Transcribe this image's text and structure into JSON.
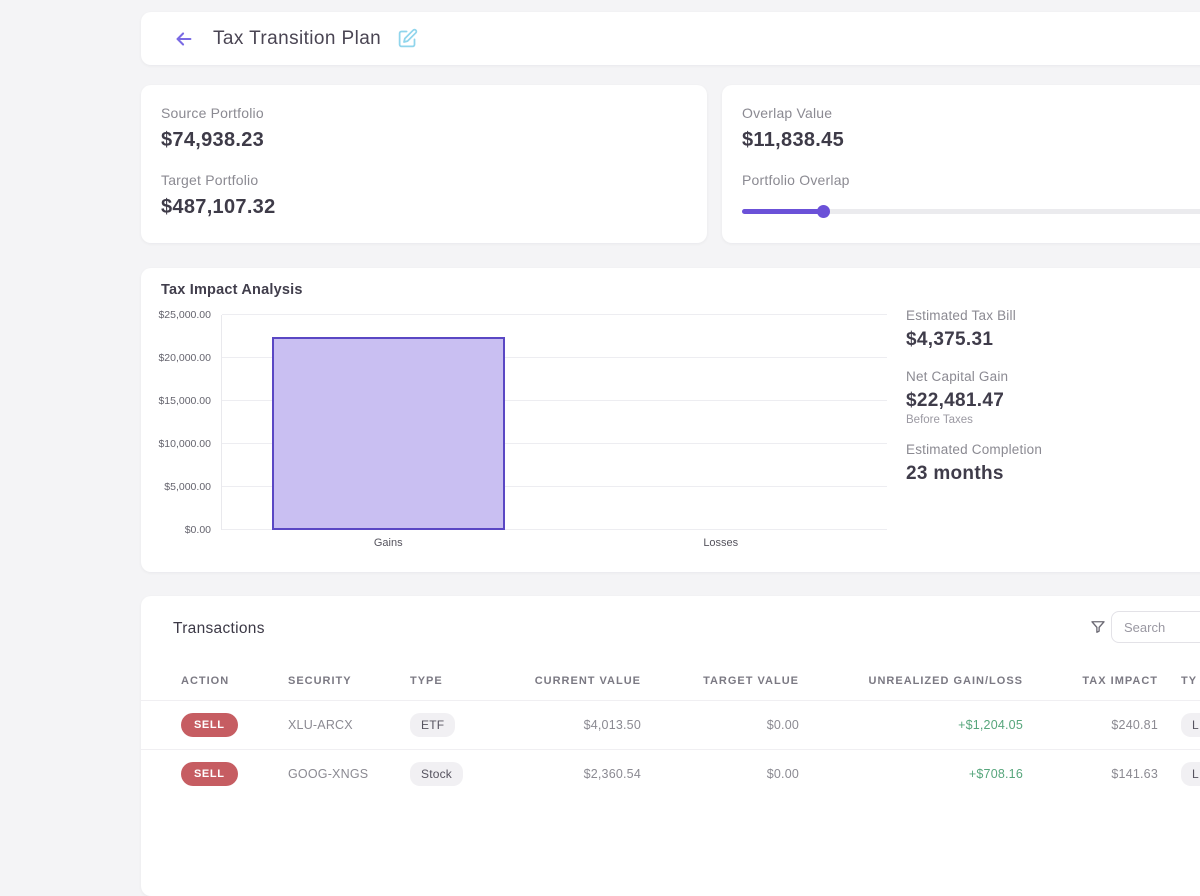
{
  "header": {
    "title": "Tax Transition Plan",
    "back_icon": "arrow-left",
    "edit_icon": "edit-pencil-square",
    "palette_icon": "palette"
  },
  "portfolio_card": {
    "source_label": "Source Portfolio",
    "source_value": "$74,938.23",
    "target_label": "Target Portfolio",
    "target_value": "$487,107.32"
  },
  "overlap_card": {
    "value_label": "Overlap Value",
    "value": "$11,838.45",
    "slider_label": "Portfolio Overlap",
    "slider_fill_percent": 16
  },
  "chart_card": {
    "title": "Tax Impact Analysis",
    "stats": [
      {
        "label": "Estimated Tax Bill",
        "value": "$4,375.31",
        "note": ""
      },
      {
        "label": "Net Capital Gain",
        "value": "$22,481.47",
        "note": "Before Taxes"
      },
      {
        "label": "Estimated Completion",
        "value": "23 months",
        "note": ""
      }
    ]
  },
  "chart_data": {
    "type": "bar",
    "title": "Tax Impact Analysis",
    "categories": [
      "Gains",
      "Losses"
    ],
    "values": [
      22481.47,
      0
    ],
    "xlabel": "",
    "ylabel": "",
    "ylim": [
      0,
      25000
    ],
    "ytick_step": 5000,
    "ytick_labels": [
      "$0.00",
      "$5,000.00",
      "$10,000.00",
      "$15,000.00",
      "$20,000.00",
      "$25,000.00"
    ],
    "grid": true,
    "legend": false,
    "bar_fill": "#c9bff2",
    "bar_border": "#5a47c4"
  },
  "transactions": {
    "title": "Transactions",
    "search_placeholder": "Search",
    "columns": [
      "ACTION",
      "SECURITY",
      "TYPE",
      "CURRENT VALUE",
      "TARGET VALUE",
      "UNREALIZED GAIN/LOSS",
      "TAX IMPACT",
      "TY"
    ],
    "rows": [
      {
        "action": "SELL",
        "security": "XLU-ARCX",
        "type": "ETF",
        "current_value": "$4,013.50",
        "target_value": "$0.00",
        "unrealized": "+$1,204.05",
        "tax_impact": "$240.81",
        "type2": "L"
      },
      {
        "action": "SELL",
        "security": "GOOG-XNGS",
        "type": "Stock",
        "current_value": "$2,360.54",
        "target_value": "$0.00",
        "unrealized": "+$708.16",
        "tax_impact": "$141.63",
        "type2": "L"
      }
    ]
  },
  "colors": {
    "accent_purple": "#6b51d8",
    "back_arrow": "#7a6ae4",
    "edit_blue": "#90d5ec",
    "bar_fill": "#c9bff2",
    "bar_border": "#5a47c4",
    "sell_red": "#c65d62",
    "gain_green": "#57a67c",
    "background": "#f4f4f6"
  }
}
